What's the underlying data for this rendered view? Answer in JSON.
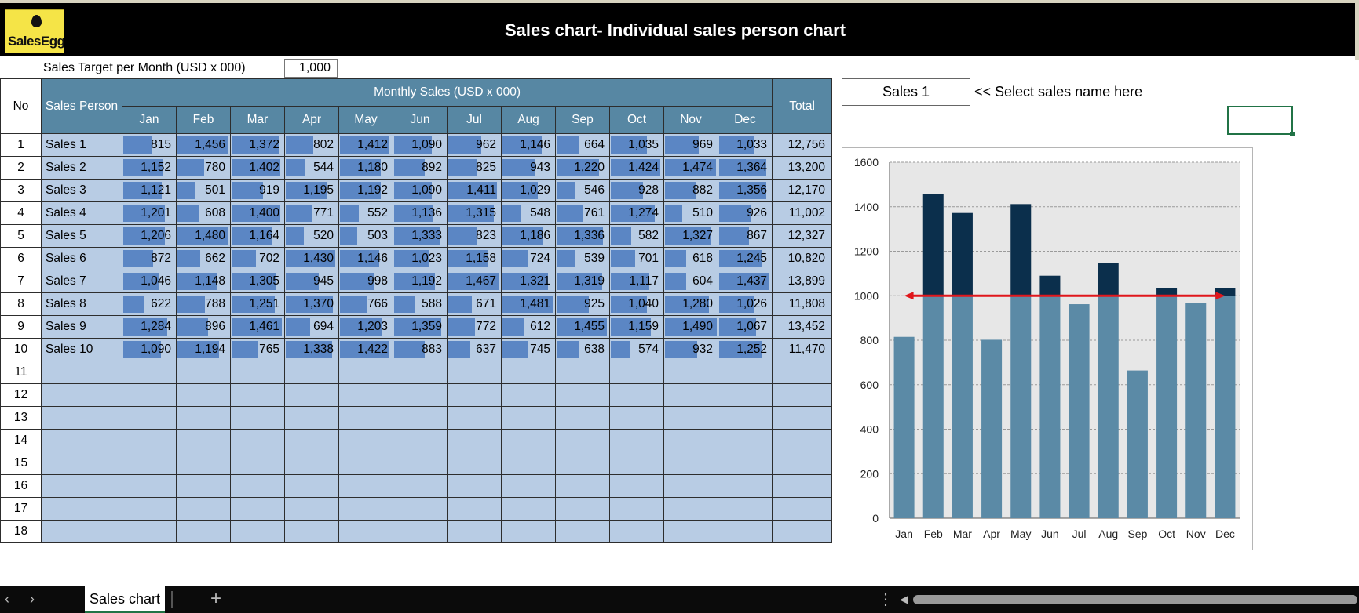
{
  "header": {
    "title": "Sales chart- Individual sales person chart",
    "logo_text": "SalesEgg"
  },
  "target": {
    "label": "Sales Target per Month (USD x 000)",
    "value": "1,000",
    "numeric": 1000
  },
  "table": {
    "col_no": "No",
    "col_person": "Sales Person",
    "group_header": "Monthly Sales (USD x 000)",
    "col_total": "Total",
    "months": [
      "Jan",
      "Feb",
      "Mar",
      "Apr",
      "May",
      "Jun",
      "Jul",
      "Aug",
      "Sep",
      "Oct",
      "Nov",
      "Dec"
    ],
    "max_value": 1500,
    "rows": [
      {
        "no": "1",
        "name": "Sales 1",
        "values": [
          815,
          1456,
          1372,
          802,
          1412,
          1090,
          962,
          1146,
          664,
          1035,
          969,
          1033
        ],
        "total": "12,756"
      },
      {
        "no": "2",
        "name": "Sales 2",
        "values": [
          1152,
          780,
          1402,
          544,
          1180,
          892,
          825,
          943,
          1220,
          1424,
          1474,
          1364
        ],
        "total": "13,200"
      },
      {
        "no": "3",
        "name": "Sales 3",
        "values": [
          1121,
          501,
          919,
          1195,
          1192,
          1090,
          1411,
          1029,
          546,
          928,
          882,
          1356
        ],
        "total": "12,170"
      },
      {
        "no": "4",
        "name": "Sales 4",
        "values": [
          1201,
          608,
          1400,
          771,
          552,
          1136,
          1315,
          548,
          761,
          1274,
          510,
          926
        ],
        "total": "11,002"
      },
      {
        "no": "5",
        "name": "Sales 5",
        "values": [
          1206,
          1480,
          1164,
          520,
          503,
          1333,
          823,
          1186,
          1336,
          582,
          1327,
          867
        ],
        "total": "12,327"
      },
      {
        "no": "6",
        "name": "Sales 6",
        "values": [
          872,
          662,
          702,
          1430,
          1146,
          1023,
          1158,
          724,
          539,
          701,
          618,
          1245
        ],
        "total": "10,820"
      },
      {
        "no": "7",
        "name": "Sales 7",
        "values": [
          1046,
          1148,
          1305,
          945,
          998,
          1192,
          1467,
          1321,
          1319,
          1117,
          604,
          1437
        ],
        "total": "13,899"
      },
      {
        "no": "8",
        "name": "Sales 8",
        "values": [
          622,
          788,
          1251,
          1370,
          766,
          588,
          671,
          1481,
          925,
          1040,
          1280,
          1026
        ],
        "total": "11,808"
      },
      {
        "no": "9",
        "name": "Sales 9",
        "values": [
          1284,
          896,
          1461,
          694,
          1203,
          1359,
          772,
          612,
          1455,
          1159,
          1490,
          1067
        ],
        "total": "13,452"
      },
      {
        "no": "10",
        "name": "Sales 10",
        "values": [
          1090,
          1194,
          765,
          1338,
          1422,
          883,
          637,
          745,
          638,
          574,
          932,
          1252
        ],
        "total": "11,470"
      }
    ],
    "empty_rows": [
      "11",
      "12",
      "13",
      "14",
      "15",
      "16",
      "17",
      "18"
    ]
  },
  "selector": {
    "value": "Sales 1",
    "hint": "<< Select sales name here"
  },
  "chart_data": {
    "type": "bar",
    "categories": [
      "Jan",
      "Feb",
      "Mar",
      "Apr",
      "May",
      "Jun",
      "Jul",
      "Aug",
      "Sep",
      "Oct",
      "Nov",
      "Dec"
    ],
    "values": [
      815,
      1456,
      1372,
      802,
      1412,
      1090,
      962,
      1146,
      664,
      1035,
      969,
      1033
    ],
    "target": 1000,
    "ylim": [
      0,
      1600
    ],
    "yticks": [
      0,
      200,
      400,
      600,
      800,
      1000,
      1200,
      1400,
      1600
    ],
    "grid": true,
    "colors": {
      "below_target": "#5b8aa6",
      "above_target": "#0b2f4c",
      "target_line": "#e0161b",
      "plot_bg": "#e7e7e7"
    }
  },
  "footer": {
    "sheet_tab": "Sales chart",
    "add_symbol": "+",
    "prev_arrow": "‹",
    "next_arrow": "›",
    "menu": "⋮",
    "scroll_arrow": "◀"
  }
}
